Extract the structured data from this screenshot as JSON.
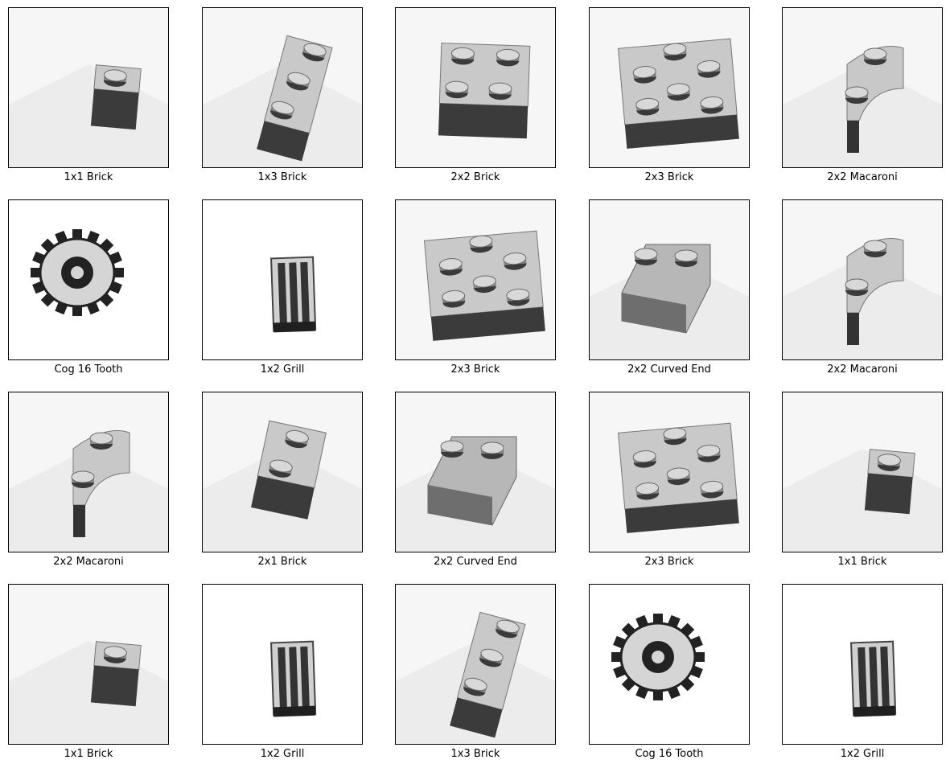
{
  "figure": {
    "columns": 5,
    "rows": 4,
    "items": [
      {
        "label": "1x1 Brick",
        "icon": "brick-1x1-icon"
      },
      {
        "label": "1x3 Brick",
        "icon": "brick-1x3-icon"
      },
      {
        "label": "2x2 Brick",
        "icon": "brick-2x2-icon"
      },
      {
        "label": "2x3 Brick",
        "icon": "brick-2x3-icon"
      },
      {
        "label": "2x2 Macaroni",
        "icon": "macaroni-2x2-icon"
      },
      {
        "label": "Cog 16 Tooth",
        "icon": "cog-16-tooth-icon"
      },
      {
        "label": "1x2 Grill",
        "icon": "grill-1x2-icon"
      },
      {
        "label": "2x3 Brick",
        "icon": "brick-2x3-icon"
      },
      {
        "label": "2x2 Curved End",
        "icon": "curved-end-2x2-icon"
      },
      {
        "label": "2x2 Macaroni",
        "icon": "macaroni-2x2-icon"
      },
      {
        "label": "2x2 Macaroni",
        "icon": "macaroni-2x2-icon"
      },
      {
        "label": "2x1 Brick",
        "icon": "brick-2x1-icon"
      },
      {
        "label": "2x2 Curved End",
        "icon": "curved-end-2x2-icon"
      },
      {
        "label": "2x3 Brick",
        "icon": "brick-2x3-icon"
      },
      {
        "label": "1x1 Brick",
        "icon": "brick-1x1-icon"
      },
      {
        "label": "1x1 Brick",
        "icon": "brick-1x1-icon"
      },
      {
        "label": "1x2 Grill",
        "icon": "grill-1x2-icon"
      },
      {
        "label": "1x3 Brick",
        "icon": "brick-1x3-icon"
      },
      {
        "label": "Cog 16 Tooth",
        "icon": "cog-16-tooth-icon"
      },
      {
        "label": "1x2 Grill",
        "icon": "grill-1x2-icon"
      }
    ]
  }
}
